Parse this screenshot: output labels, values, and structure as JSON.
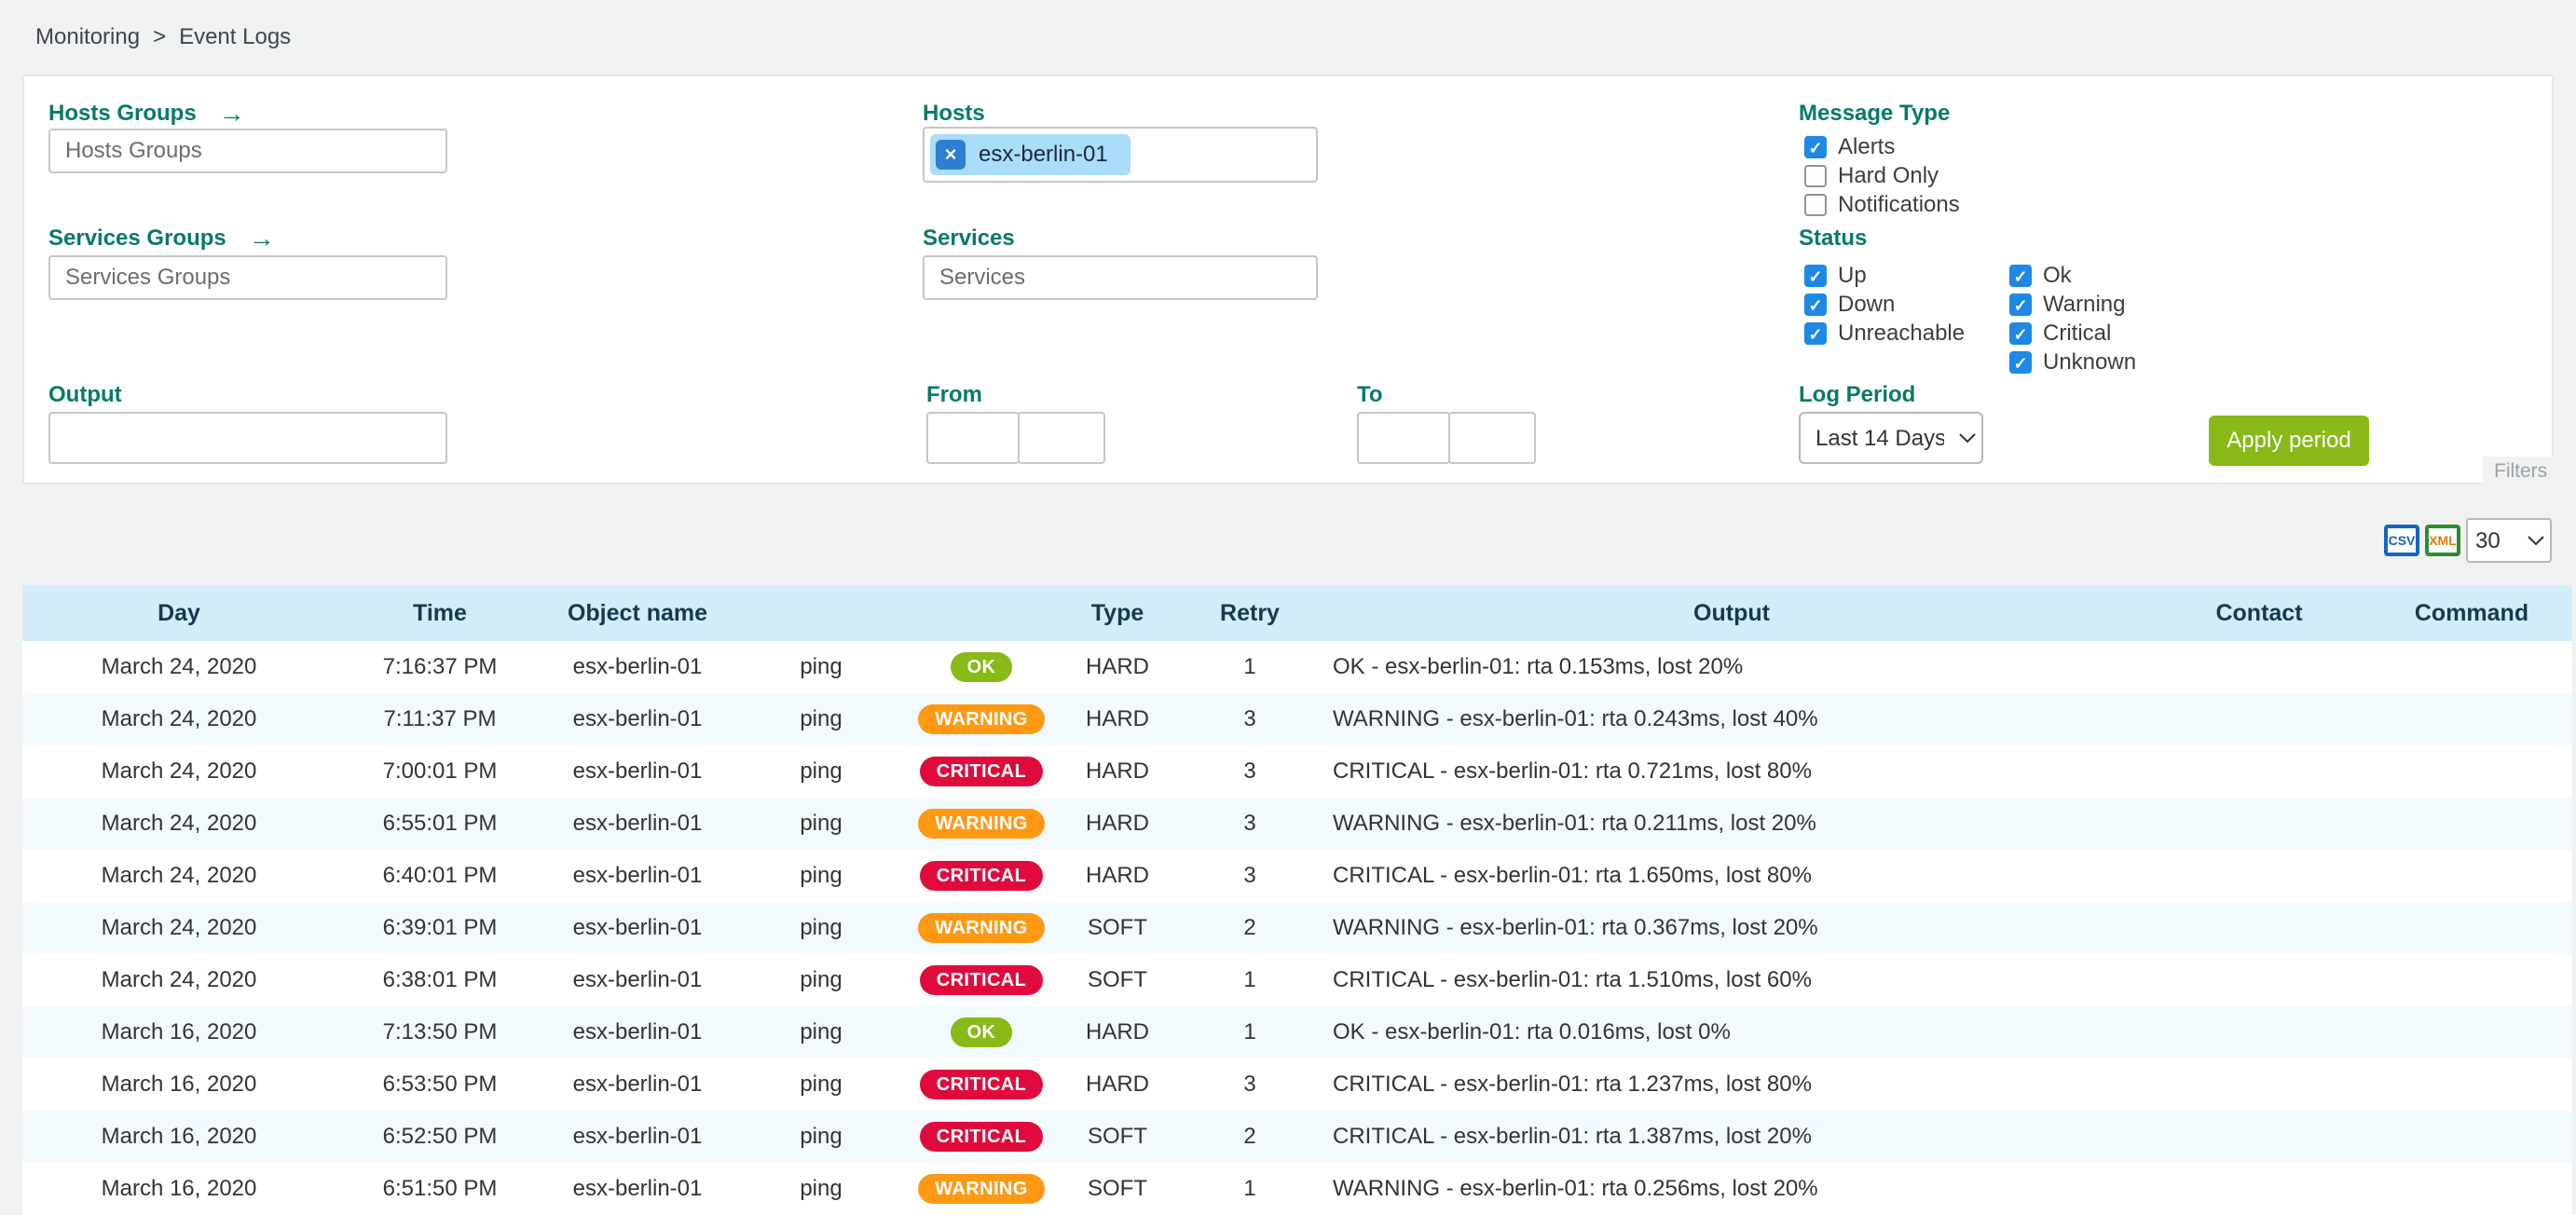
{
  "breadcrumb": {
    "separator": ">",
    "items": [
      {
        "label": "Monitoring"
      },
      {
        "label": "Event Logs"
      }
    ]
  },
  "icons": {
    "goto_arrow": "→",
    "chip_remove": "×",
    "check": "✓"
  },
  "panel": {
    "hosts_groups": {
      "label": "Hosts Groups",
      "placeholder": "Hosts Groups"
    },
    "services_groups": {
      "label": "Services Groups",
      "placeholder": "Services Groups"
    },
    "hosts": {
      "label": "Hosts",
      "selected": [
        {
          "label": "esx-berlin-01"
        }
      ]
    },
    "services": {
      "label": "Services",
      "placeholder": "Services"
    },
    "message_type": {
      "label": "Message Type",
      "options": [
        {
          "label": "Alerts",
          "checked": true
        },
        {
          "label": "Hard Only",
          "checked": false
        },
        {
          "label": "Notifications",
          "checked": false
        }
      ]
    },
    "status": {
      "label": "Status",
      "column1": [
        {
          "label": "Up",
          "checked": true
        },
        {
          "label": "Down",
          "checked": true
        },
        {
          "label": "Unreachable",
          "checked": true
        }
      ],
      "column2": [
        {
          "label": "Ok",
          "checked": true
        },
        {
          "label": "Warning",
          "checked": true
        },
        {
          "label": "Critical",
          "checked": true
        },
        {
          "label": "Unknown",
          "checked": true
        }
      ]
    },
    "output": {
      "label": "Output",
      "value": ""
    },
    "from": {
      "label": "From",
      "date": "",
      "time": ""
    },
    "to": {
      "label": "To",
      "date": "",
      "time": ""
    },
    "log_period": {
      "label": "Log Period",
      "selected": "Last 14 Days"
    },
    "apply_button": "Apply period",
    "filters_toggle": "Filters"
  },
  "toolbar": {
    "csv_label": "CSV",
    "xml_label": "XML",
    "rows_per_page": "30"
  },
  "table": {
    "headers": {
      "day": "Day",
      "time": "Time",
      "object": "Object name",
      "service": "",
      "status": "",
      "type": "Type",
      "retry": "Retry",
      "output": "Output",
      "contact": "Contact",
      "command": "Command"
    },
    "rows": [
      {
        "day": "March 24, 2020",
        "time": "7:16:37 PM",
        "object": "esx-berlin-01",
        "service": "ping",
        "status": "OK",
        "type": "HARD",
        "retry": "1",
        "output": "OK - esx-berlin-01: rta 0.153ms, lost 20%",
        "contact": "",
        "command": ""
      },
      {
        "day": "March 24, 2020",
        "time": "7:11:37 PM",
        "object": "esx-berlin-01",
        "service": "ping",
        "status": "WARNING",
        "type": "HARD",
        "retry": "3",
        "output": "WARNING - esx-berlin-01: rta 0.243ms, lost 40%",
        "contact": "",
        "command": ""
      },
      {
        "day": "March 24, 2020",
        "time": "7:00:01 PM",
        "object": "esx-berlin-01",
        "service": "ping",
        "status": "CRITICAL",
        "type": "HARD",
        "retry": "3",
        "output": "CRITICAL - esx-berlin-01: rta 0.721ms, lost 80%",
        "contact": "",
        "command": ""
      },
      {
        "day": "March 24, 2020",
        "time": "6:55:01 PM",
        "object": "esx-berlin-01",
        "service": "ping",
        "status": "WARNING",
        "type": "HARD",
        "retry": "3",
        "output": "WARNING - esx-berlin-01: rta 0.211ms, lost 20%",
        "contact": "",
        "command": ""
      },
      {
        "day": "March 24, 2020",
        "time": "6:40:01 PM",
        "object": "esx-berlin-01",
        "service": "ping",
        "status": "CRITICAL",
        "type": "HARD",
        "retry": "3",
        "output": "CRITICAL - esx-berlin-01: rta 1.650ms, lost 80%",
        "contact": "",
        "command": ""
      },
      {
        "day": "March 24, 2020",
        "time": "6:39:01 PM",
        "object": "esx-berlin-01",
        "service": "ping",
        "status": "WARNING",
        "type": "SOFT",
        "retry": "2",
        "output": "WARNING - esx-berlin-01: rta 0.367ms, lost 20%",
        "contact": "",
        "command": ""
      },
      {
        "day": "March 24, 2020",
        "time": "6:38:01 PM",
        "object": "esx-berlin-01",
        "service": "ping",
        "status": "CRITICAL",
        "type": "SOFT",
        "retry": "1",
        "output": "CRITICAL - esx-berlin-01: rta 1.510ms, lost 60%",
        "contact": "",
        "command": ""
      },
      {
        "day": "March 16, 2020",
        "time": "7:13:50 PM",
        "object": "esx-berlin-01",
        "service": "ping",
        "status": "OK",
        "type": "HARD",
        "retry": "1",
        "output": "OK - esx-berlin-01: rta 0.016ms, lost 0%",
        "contact": "",
        "command": ""
      },
      {
        "day": "March 16, 2020",
        "time": "6:53:50 PM",
        "object": "esx-berlin-01",
        "service": "ping",
        "status": "CRITICAL",
        "type": "HARD",
        "retry": "3",
        "output": "CRITICAL - esx-berlin-01: rta 1.237ms, lost 80%",
        "contact": "",
        "command": ""
      },
      {
        "day": "March 16, 2020",
        "time": "6:52:50 PM",
        "object": "esx-berlin-01",
        "service": "ping",
        "status": "CRITICAL",
        "type": "SOFT",
        "retry": "2",
        "output": "CRITICAL - esx-berlin-01: rta 1.387ms, lost 20%",
        "contact": "",
        "command": ""
      },
      {
        "day": "March 16, 2020",
        "time": "6:51:50 PM",
        "object": "esx-berlin-01",
        "service": "ping",
        "status": "WARNING",
        "type": "SOFT",
        "retry": "1",
        "output": "WARNING - esx-berlin-01: rta 0.256ms, lost 20%",
        "contact": "",
        "command": ""
      }
    ]
  },
  "colors": {
    "label_teal": "#077a67",
    "checkbox_blue": "#1e88e5",
    "apply_green": "#88b917",
    "status_ok": "#88b917",
    "status_warning": "#ff9913",
    "status_critical": "#e00b3c",
    "header_bg": "#d2edf8",
    "row_alt_bg": "#f3fafd"
  }
}
